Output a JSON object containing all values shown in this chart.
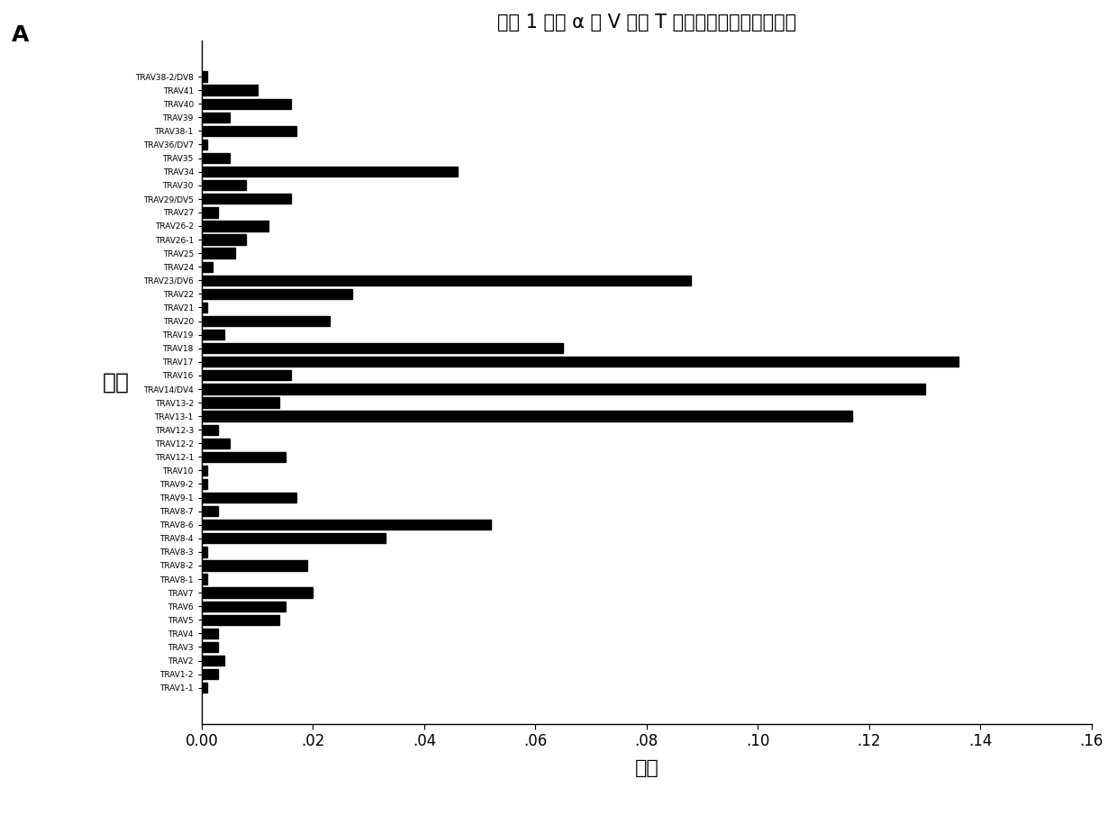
{
  "title": "样本 1 中含 α 链 V 区的 T 细胞表面受体的分布情况",
  "xlabel": "比例",
  "ylabel": "家族",
  "bar_color": "#000000",
  "background_color": "#ffffff",
  "xlim": [
    0,
    0.16
  ],
  "xticks": [
    0.0,
    0.02,
    0.04,
    0.06,
    0.08,
    0.1,
    0.12,
    0.14,
    0.16
  ],
  "xtick_labels": [
    "0.00",
    ".02",
    ".04",
    ".06",
    ".08",
    ".10",
    ".12",
    ".14",
    ".16"
  ],
  "label_A": "A",
  "categories": [
    "TRAV38-2/DV8",
    "TRAV41",
    "TRAV40",
    "TRAV39",
    "TRAV38-1",
    "TRAV36/DV7",
    "TRAV35",
    "TRAV34",
    "TRAV30",
    "TRAV29/DV5",
    "TRAV27",
    "TRAV26-2",
    "TRAV26-1",
    "TRAV25",
    "TRAV24",
    "TRAV23/DV6",
    "TRAV22",
    "TRAV21",
    "TRAV20",
    "TRAV19",
    "TRAV18",
    "TRAV17",
    "TRAV16",
    "TRAV14/DV4",
    "TRAV13-2",
    "TRAV13-1",
    "TRAV12-3",
    "TRAV12-2",
    "TRAV12-1",
    "TRAV10",
    "TRAV9-2",
    "TRAV9-1",
    "TRAV8-7",
    "TRAV8-6",
    "TRAV8-4",
    "TRAV8-3",
    "TRAV8-2",
    "TRAV8-1",
    "TRAV7",
    "TRAV6",
    "TRAV5",
    "TRAV4",
    "TRAV3",
    "TRAV2",
    "TRAV1-2",
    "TRAV1-1"
  ],
  "values": [
    0.001,
    0.01,
    0.016,
    0.005,
    0.017,
    0.001,
    0.005,
    0.046,
    0.008,
    0.016,
    0.003,
    0.012,
    0.008,
    0.006,
    0.002,
    0.088,
    0.027,
    0.001,
    0.023,
    0.004,
    0.065,
    0.136,
    0.016,
    0.13,
    0.014,
    0.117,
    0.003,
    0.005,
    0.015,
    0.001,
    0.001,
    0.017,
    0.003,
    0.052,
    0.033,
    0.001,
    0.019,
    0.001,
    0.02,
    0.015,
    0.014,
    0.003,
    0.003,
    0.004,
    0.003,
    0.001
  ],
  "title_fontsize": 15,
  "axis_label_fontsize": 16,
  "tick_fontsize": 6.5,
  "bar_height": 0.75,
  "ylabel_fontsize": 18
}
